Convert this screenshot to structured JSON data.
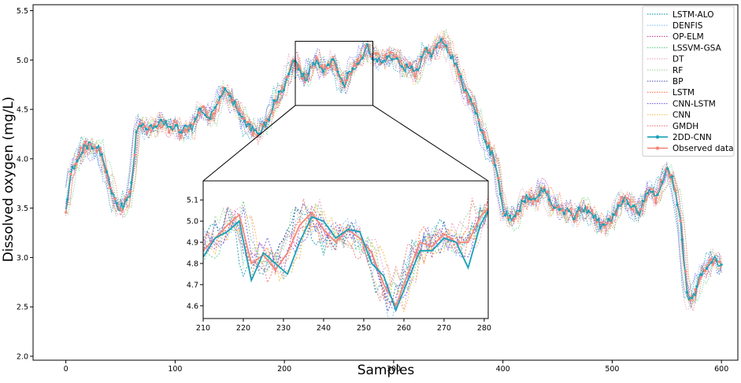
{
  "chart_data": {
    "type": "line",
    "xlabel": "Samples",
    "ylabel": "Dissolved oxygen (mg/L)",
    "xlim": [
      -30,
      615
    ],
    "ylim": [
      1.96,
      5.56
    ],
    "xticks": [
      0,
      100,
      200,
      300,
      400,
      500,
      600
    ],
    "yticks": [
      2.0,
      2.5,
      3.0,
      3.5,
      4.0,
      4.5,
      5.0,
      5.5
    ],
    "legend_position": "top-right",
    "legend": [
      {
        "label": "LSTM-ALO",
        "color": "#1f9fb4",
        "style": "dotted"
      },
      {
        "label": "DENFIS",
        "color": "#85c1ff",
        "style": "dotted"
      },
      {
        "label": "OP-ELM",
        "color": "#c44fa0",
        "style": "dotted"
      },
      {
        "label": "LSSVM-GSA",
        "color": "#6bd68f",
        "style": "dotted"
      },
      {
        "label": "DT",
        "color": "#e9a3c9",
        "style": "dotted"
      },
      {
        "label": "RF",
        "color": "#a6dba0",
        "style": "dotted"
      },
      {
        "label": "BP",
        "color": "#5a5fb5",
        "style": "dotted"
      },
      {
        "label": "LSTM",
        "color": "#ff7f50",
        "style": "dotted"
      },
      {
        "label": "CNN-LSTM",
        "color": "#7b68ee",
        "style": "dotted"
      },
      {
        "label": "CNN",
        "color": "#f2c14e",
        "style": "dotted"
      },
      {
        "label": "GMDH",
        "color": "#f08080",
        "style": "dotted"
      },
      {
        "label": "2DD-CNN",
        "color": "#17a2b8",
        "style": "solid-marker"
      },
      {
        "label": "Observed data",
        "color": "#f4877a",
        "style": "solid-marker"
      }
    ],
    "observed": {
      "x": [
        0,
        5,
        10,
        15,
        20,
        25,
        30,
        35,
        40,
        45,
        48,
        52,
        58,
        62,
        65,
        68,
        72,
        78,
        85,
        90,
        95,
        100,
        105,
        110,
        115,
        120,
        125,
        130,
        135,
        140,
        145,
        150,
        155,
        160,
        165,
        170,
        175,
        180,
        185,
        190,
        195,
        200,
        205,
        210,
        215,
        220,
        225,
        230,
        235,
        240,
        245,
        250,
        255,
        260,
        265,
        270,
        275,
        280,
        285,
        290,
        295,
        300,
        305,
        310,
        315,
        320,
        325,
        330,
        335,
        340,
        345,
        350,
        355,
        360,
        365,
        370,
        375,
        380,
        385,
        390,
        395,
        400,
        405,
        410,
        415,
        420,
        425,
        430,
        435,
        440,
        445,
        450,
        455,
        460,
        465,
        470,
        475,
        480,
        485,
        490,
        495,
        500,
        505,
        510,
        515,
        520,
        525,
        530,
        535,
        540,
        545,
        550,
        555,
        560,
        563,
        566,
        570,
        575,
        580,
        585,
        590,
        595,
        600
      ],
      "y": [
        3.5,
        3.85,
        4.0,
        4.1,
        4.15,
        4.1,
        4.1,
        3.95,
        3.75,
        3.55,
        3.5,
        3.52,
        3.6,
        3.9,
        4.3,
        4.38,
        4.32,
        4.3,
        4.35,
        4.37,
        4.3,
        4.35,
        4.25,
        4.32,
        4.3,
        4.45,
        4.5,
        4.42,
        4.45,
        4.6,
        4.7,
        4.62,
        4.55,
        4.45,
        4.35,
        4.3,
        4.25,
        4.3,
        4.4,
        4.55,
        4.65,
        4.72,
        4.9,
        5.0,
        4.85,
        4.8,
        4.95,
        5.0,
        4.9,
        4.95,
        5.0,
        4.82,
        4.75,
        4.9,
        4.95,
        5.02,
        5.15,
        5.05,
        5.02,
        5.0,
        5.02,
        5.05,
        5.0,
        4.9,
        4.95,
        4.85,
        5.0,
        5.1,
        5.05,
        5.15,
        5.2,
        5.1,
        5.0,
        4.85,
        4.7,
        4.6,
        4.5,
        4.3,
        4.15,
        4.05,
        3.85,
        3.5,
        3.4,
        3.38,
        3.5,
        3.6,
        3.62,
        3.55,
        3.7,
        3.65,
        3.5,
        3.55,
        3.45,
        3.5,
        3.4,
        3.48,
        3.5,
        3.45,
        3.4,
        3.3,
        3.35,
        3.4,
        3.5,
        3.6,
        3.55,
        3.5,
        3.45,
        3.6,
        3.7,
        3.6,
        3.75,
        3.9,
        3.8,
        3.55,
        3.3,
        2.9,
        2.55,
        2.6,
        2.8,
        2.9,
        2.95,
        2.98,
        2.92
      ]
    },
    "inset": {
      "xlim": [
        210,
        281
      ],
      "ylim": [
        4.54,
        5.19
      ],
      "xticks": [
        210,
        220,
        230,
        240,
        250,
        260,
        270,
        280
      ],
      "yticks": [
        4.6,
        4.7,
        4.8,
        4.9,
        5.0,
        5.1
      ],
      "observed": {
        "x": [
          210,
          213,
          216,
          219,
          222,
          225,
          228,
          231,
          234,
          237,
          240,
          243,
          246,
          249,
          252,
          255,
          258,
          261,
          264,
          267,
          270,
          273,
          276,
          279,
          281
        ],
        "y": [
          4.86,
          4.92,
          4.98,
          5.03,
          4.8,
          4.84,
          4.77,
          4.85,
          4.98,
          5.04,
          4.96,
          4.9,
          4.96,
          4.92,
          4.85,
          4.7,
          4.6,
          4.75,
          4.9,
          4.88,
          4.94,
          4.9,
          4.9,
          5.02,
          5.06
        ]
      },
      "model_2ddcnn": {
        "x": [
          210,
          213,
          216,
          219,
          222,
          225,
          228,
          231,
          234,
          237,
          240,
          243,
          246,
          249,
          252,
          255,
          258,
          261,
          264,
          267,
          270,
          273,
          276,
          279,
          281
        ],
        "y": [
          4.83,
          4.92,
          4.95,
          5.0,
          4.72,
          4.85,
          4.8,
          4.75,
          4.9,
          5.02,
          5.0,
          4.92,
          4.96,
          4.95,
          4.8,
          4.74,
          4.58,
          4.72,
          4.86,
          4.86,
          4.92,
          4.9,
          4.78,
          4.98,
          5.05
        ]
      }
    }
  }
}
